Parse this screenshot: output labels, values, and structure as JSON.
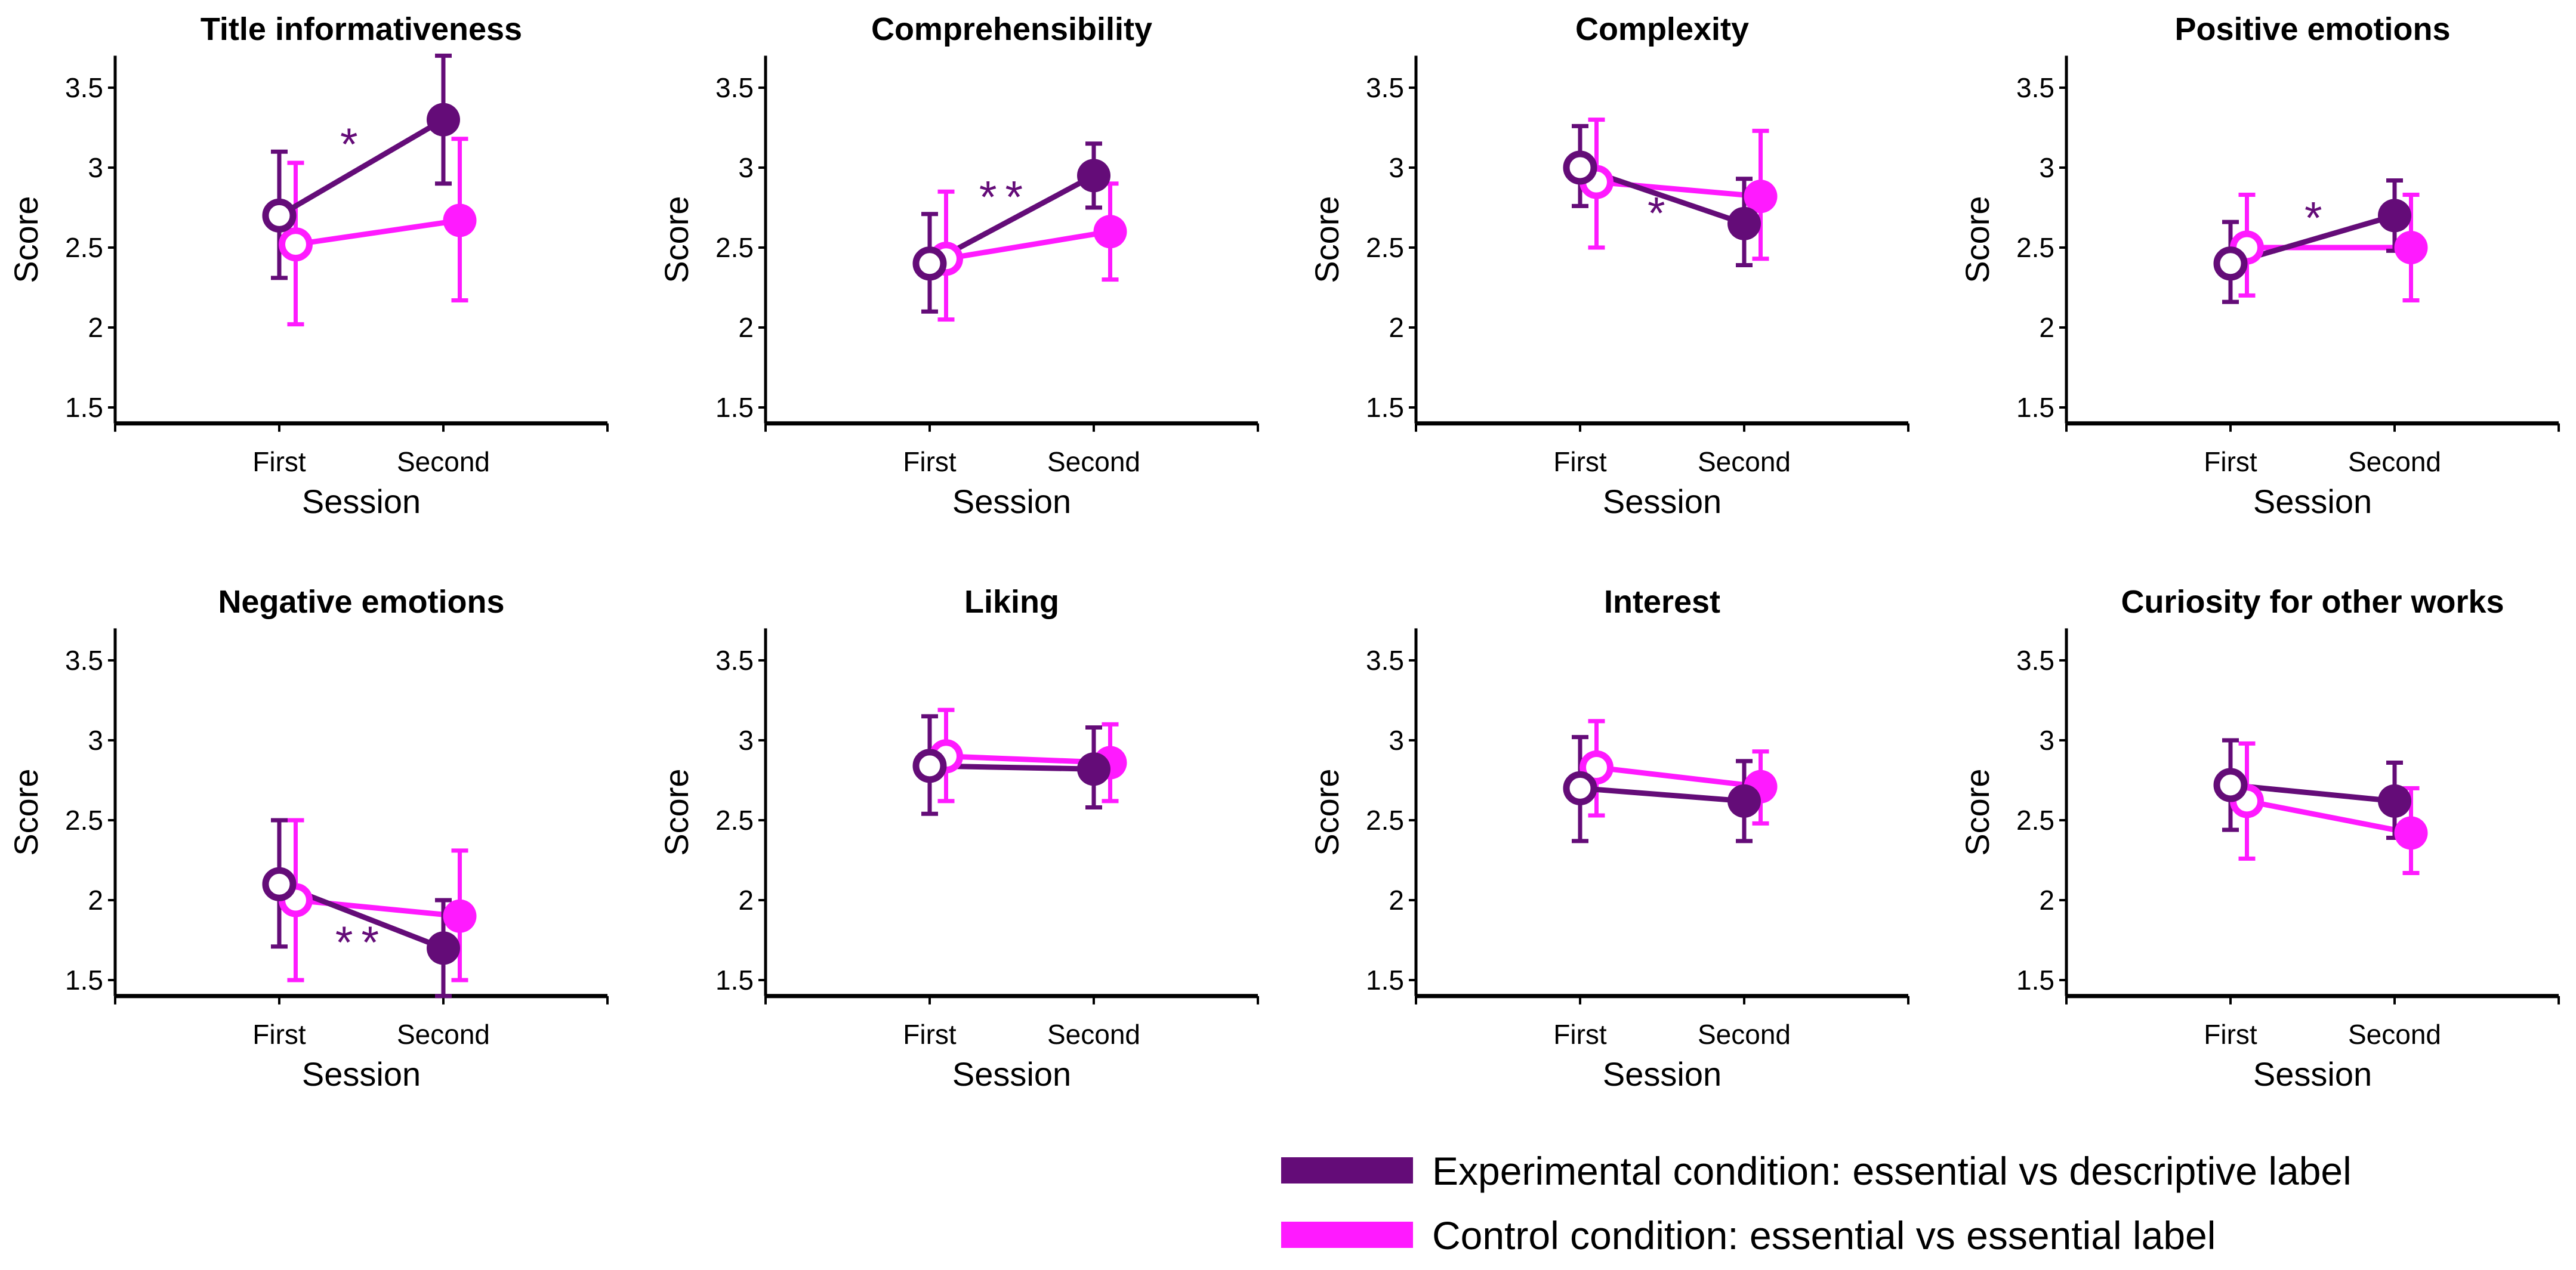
{
  "chart_data": {
    "type": "line",
    "layout": "2x4 small multiples",
    "xlabel": "Session",
    "ylabel": "Score",
    "categories": [
      "First",
      "Second"
    ],
    "yticks": [
      "1.5",
      "2",
      "2.5",
      "3",
      "3.5"
    ],
    "ytick_values": [
      1.5,
      2,
      2.5,
      3,
      3.5
    ],
    "ylim": [
      1.4,
      3.7
    ],
    "xlim": [
      -1,
      2
    ],
    "grid": false,
    "legend_placement": "bottom-right",
    "legend": [
      {
        "key": "exp",
        "label": "Experimental condition: essential vs descriptive label",
        "color": "#640c78"
      },
      {
        "key": "ctrl",
        "label": "Control condition: essential vs essential label",
        "color": "#ff1aff"
      }
    ],
    "note": "Open markers = First session, filled markers = Second session; error bars shown",
    "panels": [
      {
        "title": "Title informativeness",
        "annotation": {
          "text": "*",
          "x": 0.45,
          "y": 3.16
        },
        "series": {
          "exp": {
            "values": [
              2.7,
              3.3
            ],
            "upper": [
              3.1,
              3.7
            ],
            "lower": [
              2.31,
              2.9
            ]
          },
          "ctrl": {
            "values": [
              2.52,
              2.67
            ],
            "upper": [
              3.03,
              3.18
            ],
            "lower": [
              2.02,
              2.17
            ]
          }
        }
      },
      {
        "title": "Comprehensibility",
        "annotation": {
          "text": "**",
          "x": 0.46,
          "y": 2.83
        },
        "series": {
          "exp": {
            "values": [
              2.4,
              2.95
            ],
            "upper": [
              2.71,
              3.15
            ],
            "lower": [
              2.1,
              2.75
            ]
          },
          "ctrl": {
            "values": [
              2.43,
              2.6
            ],
            "upper": [
              2.85,
              2.9
            ],
            "lower": [
              2.05,
              2.3
            ]
          }
        }
      },
      {
        "title": "Complexity",
        "annotation": {
          "text": "*",
          "x": 0.49,
          "y": 2.73
        },
        "series": {
          "exp": {
            "values": [
              3.0,
              2.65
            ],
            "upper": [
              3.26,
              2.93
            ],
            "lower": [
              2.76,
              2.39
            ]
          },
          "ctrl": {
            "values": [
              2.91,
              2.82
            ],
            "upper": [
              3.3,
              3.23
            ],
            "lower": [
              2.5,
              2.43
            ]
          }
        }
      },
      {
        "title": "Positive emotions",
        "annotation": {
          "text": "*",
          "x": 0.53,
          "y": 2.7
        },
        "series": {
          "exp": {
            "values": [
              2.4,
              2.7
            ],
            "upper": [
              2.66,
              2.92
            ],
            "lower": [
              2.16,
              2.48
            ]
          },
          "ctrl": {
            "values": [
              2.5,
              2.5
            ],
            "upper": [
              2.83,
              2.83
            ],
            "lower": [
              2.2,
              2.17
            ]
          }
        }
      },
      {
        "title": "Negative emotions",
        "annotation": {
          "text": "**",
          "x": 0.5,
          "y": 1.75
        },
        "series": {
          "exp": {
            "values": [
              2.1,
              1.7
            ],
            "upper": [
              2.5,
              2.0
            ],
            "lower": [
              1.71,
              1.4
            ]
          },
          "ctrl": {
            "values": [
              2.0,
              1.9
            ],
            "upper": [
              2.5,
              2.31
            ],
            "lower": [
              1.5,
              1.5
            ]
          }
        }
      },
      {
        "title": "Liking",
        "annotation": null,
        "series": {
          "exp": {
            "values": [
              2.84,
              2.82
            ],
            "upper": [
              3.15,
              3.08
            ],
            "lower": [
              2.54,
              2.58
            ]
          },
          "ctrl": {
            "values": [
              2.9,
              2.86
            ],
            "upper": [
              3.19,
              3.1
            ],
            "lower": [
              2.62,
              2.62
            ]
          }
        }
      },
      {
        "title": "Interest",
        "annotation": null,
        "series": {
          "exp": {
            "values": [
              2.7,
              2.62
            ],
            "upper": [
              3.02,
              2.87
            ],
            "lower": [
              2.37,
              2.37
            ]
          },
          "ctrl": {
            "values": [
              2.83,
              2.71
            ],
            "upper": [
              3.12,
              2.93
            ],
            "lower": [
              2.53,
              2.48
            ]
          }
        }
      },
      {
        "title": "Curiosity for other works",
        "annotation": null,
        "series": {
          "exp": {
            "values": [
              2.72,
              2.62
            ],
            "upper": [
              3.0,
              2.86
            ],
            "lower": [
              2.44,
              2.39
            ]
          },
          "ctrl": {
            "values": [
              2.62,
              2.42
            ],
            "upper": [
              2.98,
              2.7
            ],
            "lower": [
              2.26,
              2.17
            ]
          }
        }
      }
    ]
  }
}
